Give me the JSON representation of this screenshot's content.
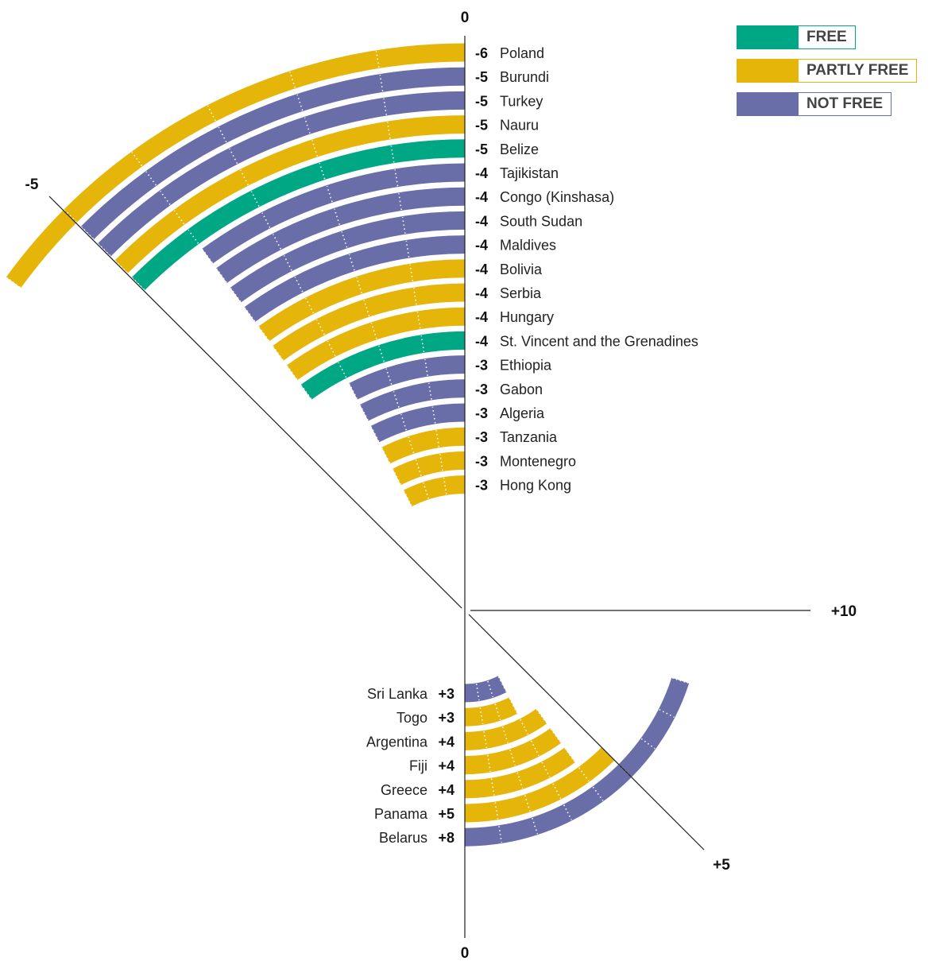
{
  "legend": {
    "items": [
      {
        "label": "FREE",
        "color": "#00a784"
      },
      {
        "label": "PARTLY FREE",
        "color": "#e6b50a"
      },
      {
        "label": "NOT FREE",
        "color": "#6a6ea8"
      }
    ]
  },
  "axis_labels": {
    "top": "0",
    "bottom": "0",
    "left_diag": "-5",
    "right": "+10",
    "right_diag": "+5"
  },
  "chart_data": {
    "type": "radial-bar",
    "title": "",
    "scale": {
      "min": -10,
      "max": 10,
      "ticks": [
        -5,
        0,
        5,
        10
      ]
    },
    "series_colors": {
      "FREE": "#00a784",
      "PARTLY FREE": "#e6b50a",
      "NOT FREE": "#6a6ea8"
    },
    "declines": [
      {
        "country": "Poland",
        "value": -6,
        "value_label": "-6",
        "status": "PARTLY FREE"
      },
      {
        "country": "Burundi",
        "value": -5,
        "value_label": "-5",
        "status": "NOT FREE"
      },
      {
        "country": "Turkey",
        "value": -5,
        "value_label": "-5",
        "status": "NOT FREE"
      },
      {
        "country": "Nauru",
        "value": -5,
        "value_label": "-5",
        "status": "PARTLY FREE"
      },
      {
        "country": "Belize",
        "value": -5,
        "value_label": "-5",
        "status": "FREE"
      },
      {
        "country": "Tajikistan",
        "value": -4,
        "value_label": "-4",
        "status": "NOT FREE"
      },
      {
        "country": "Congo (Kinshasa)",
        "value": -4,
        "value_label": "-4",
        "status": "NOT FREE"
      },
      {
        "country": "South Sudan",
        "value": -4,
        "value_label": "-4",
        "status": "NOT FREE"
      },
      {
        "country": "Maldives",
        "value": -4,
        "value_label": "-4",
        "status": "NOT FREE"
      },
      {
        "country": "Bolivia",
        "value": -4,
        "value_label": "-4",
        "status": "PARTLY FREE"
      },
      {
        "country": "Serbia",
        "value": -4,
        "value_label": "-4",
        "status": "PARTLY FREE"
      },
      {
        "country": "Hungary",
        "value": -4,
        "value_label": "-4",
        "status": "PARTLY FREE"
      },
      {
        "country": "St. Vincent and the Grenadines",
        "value": -4,
        "value_label": "-4",
        "status": "FREE"
      },
      {
        "country": "Ethiopia",
        "value": -3,
        "value_label": "-3",
        "status": "NOT FREE"
      },
      {
        "country": "Gabon",
        "value": -3,
        "value_label": "-3",
        "status": "NOT FREE"
      },
      {
        "country": "Algeria",
        "value": -3,
        "value_label": "-3",
        "status": "NOT FREE"
      },
      {
        "country": "Tanzania",
        "value": -3,
        "value_label": "-3",
        "status": "PARTLY FREE"
      },
      {
        "country": "Montenegro",
        "value": -3,
        "value_label": "-3",
        "status": "PARTLY FREE"
      },
      {
        "country": "Hong Kong",
        "value": -3,
        "value_label": "-3",
        "status": "PARTLY FREE"
      }
    ],
    "gains": [
      {
        "country": "Sri Lanka",
        "value": 3,
        "value_label": "+3",
        "status": "NOT FREE"
      },
      {
        "country": "Togo",
        "value": 3,
        "value_label": "+3",
        "status": "PARTLY FREE"
      },
      {
        "country": "Argentina",
        "value": 4,
        "value_label": "+4",
        "status": "PARTLY FREE"
      },
      {
        "country": "Fiji",
        "value": 4,
        "value_label": "+4",
        "status": "PARTLY FREE"
      },
      {
        "country": "Greece",
        "value": 4,
        "value_label": "+4",
        "status": "PARTLY FREE"
      },
      {
        "country": "Panama",
        "value": 5,
        "value_label": "+5",
        "status": "PARTLY FREE"
      },
      {
        "country": "Belarus",
        "value": 8,
        "value_label": "+8",
        "status": "NOT FREE"
      }
    ]
  }
}
